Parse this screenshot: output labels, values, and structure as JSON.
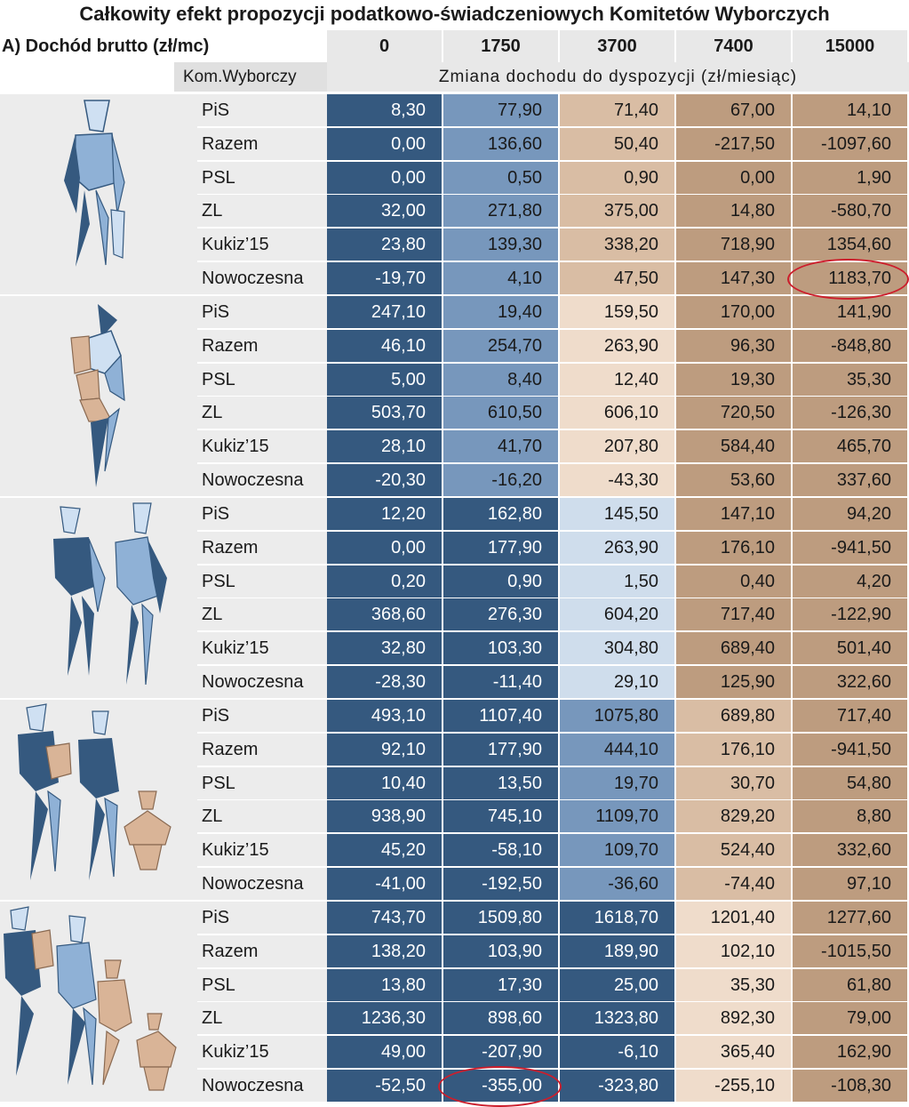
{
  "chart_data": {
    "type": "table",
    "title": "Całkowity efekt propozycji podatkowo-świadczeniowych Komitetów Wyborczych",
    "row_header": "A) Dochód brutto (zł/mc)",
    "party_header": "Kom.Wyborczy",
    "value_header": "Zmiana dochodu do dyspozycji (zł/miesiąc)",
    "incomes": [
      "0",
      "1750",
      "3700",
      "7400",
      "15000"
    ],
    "colors": {
      "dark_blue": "#35597f",
      "mid_blue": "#7797bc",
      "light_blue": "#cfddec",
      "light_tan": "#efdccb",
      "mid_tan": "#d9bda4",
      "dark_tan": "#bd9c7f",
      "circle": "#cc1e2c"
    },
    "groups": [
      {
        "figure": "single-adult-icon",
        "colors": [
          "dark_blue",
          "mid_blue",
          "mid_tan",
          "dark_tan",
          "dark_tan"
        ],
        "rows": [
          {
            "party": "PiS",
            "values": [
              "8,30",
              "77,90",
              "71,40",
              "67,00",
              "14,10"
            ]
          },
          {
            "party": "Razem",
            "values": [
              "0,00",
              "136,60",
              "50,40",
              "-217,50",
              "-1097,60"
            ]
          },
          {
            "party": "PSL",
            "values": [
              "0,00",
              "0,50",
              "0,90",
              "0,00",
              "1,90"
            ]
          },
          {
            "party": "ZL",
            "values": [
              "32,00",
              "271,80",
              "375,00",
              "14,80",
              "-580,70"
            ]
          },
          {
            "party": "Kukiz’15",
            "values": [
              "23,80",
              "139,30",
              "338,20",
              "718,90",
              "1354,60"
            ]
          },
          {
            "party": "Nowoczesna",
            "values": [
              "-19,70",
              "4,10",
              "47,50",
              "147,30",
              "1183,70"
            ]
          }
        ]
      },
      {
        "figure": "adult-with-child-icon",
        "colors": [
          "dark_blue",
          "mid_blue",
          "light_tan",
          "dark_tan",
          "dark_tan"
        ],
        "rows": [
          {
            "party": "PiS",
            "values": [
              "247,10",
              "19,40",
              "159,50",
              "170,00",
              "141,90"
            ]
          },
          {
            "party": "Razem",
            "values": [
              "46,10",
              "254,70",
              "263,90",
              "96,30",
              "-848,80"
            ]
          },
          {
            "party": "PSL",
            "values": [
              "5,00",
              "8,40",
              "12,40",
              "19,30",
              "35,30"
            ]
          },
          {
            "party": "ZL",
            "values": [
              "503,70",
              "610,50",
              "606,10",
              "720,50",
              "-126,30"
            ]
          },
          {
            "party": "Kukiz’15",
            "values": [
              "28,10",
              "41,70",
              "207,80",
              "584,40",
              "465,70"
            ]
          },
          {
            "party": "Nowoczesna",
            "values": [
              "-20,30",
              "-16,20",
              "-43,30",
              "53,60",
              "337,60"
            ]
          }
        ]
      },
      {
        "figure": "couple-icon",
        "colors": [
          "dark_blue",
          "dark_blue",
          "light_blue",
          "dark_tan",
          "dark_tan"
        ],
        "rows": [
          {
            "party": "PiS",
            "values": [
              "12,20",
              "162,80",
              "145,50",
              "147,10",
              "94,20"
            ]
          },
          {
            "party": "Razem",
            "values": [
              "0,00",
              "177,90",
              "263,90",
              "176,10",
              "-941,50"
            ]
          },
          {
            "party": "PSL",
            "values": [
              "0,20",
              "0,90",
              "1,50",
              "0,40",
              "4,20"
            ]
          },
          {
            "party": "ZL",
            "values": [
              "368,60",
              "276,30",
              "604,20",
              "717,40",
              "-122,90"
            ]
          },
          {
            "party": "Kukiz’15",
            "values": [
              "32,80",
              "103,30",
              "304,80",
              "689,40",
              "501,40"
            ]
          },
          {
            "party": "Nowoczesna",
            "values": [
              "-28,30",
              "-11,40",
              "29,10",
              "125,90",
              "322,60"
            ]
          }
        ]
      },
      {
        "figure": "family-two-children-icon",
        "colors": [
          "dark_blue",
          "dark_blue",
          "mid_blue",
          "mid_tan",
          "dark_tan"
        ],
        "rows": [
          {
            "party": "PiS",
            "values": [
              "493,10",
              "1107,40",
              "1075,80",
              "689,80",
              "717,40"
            ]
          },
          {
            "party": "Razem",
            "values": [
              "92,10",
              "177,90",
              "444,10",
              "176,10",
              "-941,50"
            ]
          },
          {
            "party": "PSL",
            "values": [
              "10,40",
              "13,50",
              "19,70",
              "30,70",
              "54,80"
            ]
          },
          {
            "party": "ZL",
            "values": [
              "938,90",
              "745,10",
              "1109,70",
              "829,20",
              "8,80"
            ]
          },
          {
            "party": "Kukiz’15",
            "values": [
              "45,20",
              "-58,10",
              "109,70",
              "524,40",
              "332,60"
            ]
          },
          {
            "party": "Nowoczesna",
            "values": [
              "-41,00",
              "-192,50",
              "-36,60",
              "-74,40",
              "97,10"
            ]
          }
        ]
      },
      {
        "figure": "large-family-icon",
        "colors": [
          "dark_blue",
          "dark_blue",
          "dark_blue",
          "light_tan",
          "dark_tan"
        ],
        "rows": [
          {
            "party": "PiS",
            "values": [
              "743,70",
              "1509,80",
              "1618,70",
              "1201,40",
              "1277,60"
            ]
          },
          {
            "party": "Razem",
            "values": [
              "138,20",
              "103,90",
              "189,90",
              "102,10",
              "-1015,50"
            ]
          },
          {
            "party": "PSL",
            "values": [
              "13,80",
              "17,30",
              "25,00",
              "35,30",
              "61,80"
            ]
          },
          {
            "party": "ZL",
            "values": [
              "1236,30",
              "898,60",
              "1323,80",
              "892,30",
              "79,00"
            ]
          },
          {
            "party": "Kukiz’15",
            "values": [
              "49,00",
              "-207,90",
              "-6,10",
              "365,40",
              "162,90"
            ]
          },
          {
            "party": "Nowoczesna",
            "values": [
              "-52,50",
              "-355,00",
              "-323,80",
              "-255,10",
              "-108,30"
            ]
          }
        ]
      }
    ],
    "circled": [
      {
        "group": 0,
        "row": 5,
        "col": 4
      },
      {
        "group": 4,
        "row": 5,
        "col": 1
      }
    ]
  }
}
